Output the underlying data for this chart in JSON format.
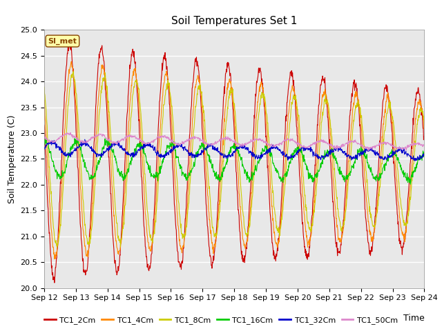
{
  "title": "Soil Temperatures Set 1",
  "xlabel": "Time",
  "ylabel": "Soil Temperature (C)",
  "ylim": [
    20.0,
    25.0
  ],
  "yticks": [
    20.0,
    20.5,
    21.0,
    21.5,
    22.0,
    22.5,
    23.0,
    23.5,
    24.0,
    24.5,
    25.0
  ],
  "xtick_labels": [
    "Sep 12",
    "Sep 13",
    "Sep 14",
    "Sep 15",
    "Sep 16",
    "Sep 17",
    "Sep 18",
    "Sep 19",
    "Sep 20",
    "Sep 21",
    "Sep 22",
    "Sep 23",
    "Sep 24"
  ],
  "series_names": [
    "TC1_2Cm",
    "TC1_4Cm",
    "TC1_8Cm",
    "TC1_16Cm",
    "TC1_32Cm",
    "TC1_50Cm"
  ],
  "series_colors": [
    "#cc0000",
    "#ff8800",
    "#cccc00",
    "#00cc00",
    "#0000cc",
    "#dd88cc"
  ],
  "annotation_text": "SI_met",
  "annotation_color": "#884400",
  "annotation_bg": "#ffffaa",
  "annotation_edge": "#884400",
  "bg_color": "#e8e8e8",
  "grid_color": "#ffffff",
  "title_fontsize": 11,
  "tick_fontsize": 8,
  "axis_label_fontsize": 9,
  "legend_fontsize": 8,
  "lw": 0.8,
  "n_days": 12,
  "pts_per_day": 96
}
